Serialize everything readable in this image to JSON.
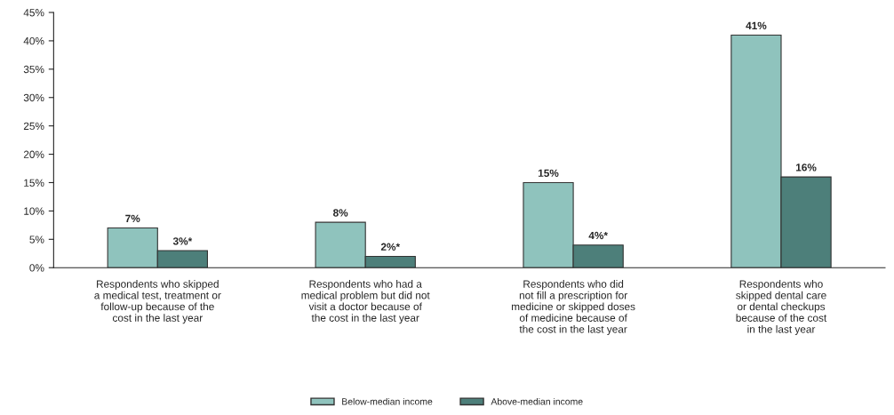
{
  "chart_data": {
    "type": "bar",
    "categories": [
      "Respondents who skipped\na medical test, treatment or\nfollow-up because of the\ncost in the last year",
      "Respondents who had a\nmedical problem but did not\nvisit a doctor because of\nthe cost in the last year",
      "Respondents who did\nnot fill a prescription for\nmedicine or skipped doses\nof medicine because of\nthe cost in the last year",
      "Respondents who\nskipped dental care\nor dental checkups\nbecause of the cost\nin the last year"
    ],
    "series": [
      {
        "name": "Below-median income",
        "color": "#8fc3bd",
        "values": [
          7,
          8,
          15,
          41
        ],
        "value_labels": [
          "7%",
          "8%",
          "15%",
          "41%"
        ]
      },
      {
        "name": "Above-median income",
        "color": "#4d7f7a",
        "values": [
          3,
          2,
          4,
          16
        ],
        "value_labels": [
          "3%*",
          "2%*",
          "4%*",
          "16%"
        ]
      }
    ],
    "ylim": [
      0,
      45
    ],
    "yticks": [
      {
        "value": 0,
        "label": "0%"
      },
      {
        "value": 5,
        "label": "5%"
      },
      {
        "value": 10,
        "label": "10%"
      },
      {
        "value": 15,
        "label": "15%"
      },
      {
        "value": 20,
        "label": "20%"
      },
      {
        "value": 25,
        "label": "25%"
      },
      {
        "value": 30,
        "label": "30%"
      },
      {
        "value": 35,
        "label": "35%"
      },
      {
        "value": 40,
        "label": "40%"
      },
      {
        "value": 45,
        "label": "45%"
      }
    ],
    "legend": "bottom"
  }
}
